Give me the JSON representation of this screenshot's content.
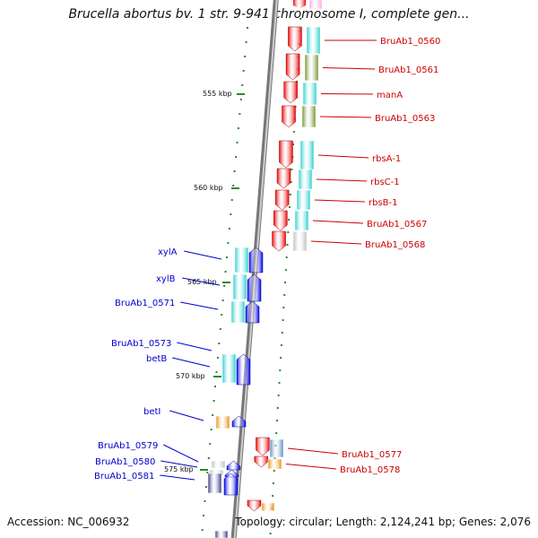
{
  "title": "Brucella abortus bv. 1 str. 9-941 chromosome I, complete gen...",
  "footer": {
    "accession": "Accession: NC_006932",
    "topology": "Topology: circular; Length: 2,124,241 bp; Genes: 2,076"
  },
  "colors": {
    "backbone": "#999999",
    "tick": "#2a8a2a",
    "forward_label": "#cc0000",
    "reverse_label": "#0000cc",
    "cyan": "#22cccc",
    "olive": "#6b8a20",
    "pink": "#ff9adf",
    "gray": "#bbbbbb",
    "orange": "#ee8800",
    "steel": "#4f86c0",
    "navy": "#2a2a80",
    "red": "#ee0000",
    "blue": "#0000ee"
  },
  "scale_labels": [
    "555 kbp",
    "560 kbp",
    "565 kbp",
    "570 kbp",
    "575 kbp"
  ],
  "forward_genes": [
    {
      "label": "BruAb1_0560",
      "color": "cyan"
    },
    {
      "label": "BruAb1_0561",
      "color": "olive"
    },
    {
      "label": "manA",
      "color": "cyan"
    },
    {
      "label": "BruAb1_0563",
      "color": "olive"
    },
    {
      "label": "rbsA-1",
      "color": "cyan"
    },
    {
      "label": "rbsC-1",
      "color": "cyan"
    },
    {
      "label": "rbsB-1",
      "color": "cyan"
    },
    {
      "label": "BruAb1_0567",
      "color": "cyan"
    },
    {
      "label": "BruAb1_0568",
      "color": "gray"
    },
    {
      "label": "BruAb1_0577",
      "color": "steel"
    },
    {
      "label": "BruAb1_0578",
      "color": "orange"
    }
  ],
  "reverse_genes": [
    {
      "label": "xylA",
      "color": "cyan"
    },
    {
      "label": "xylB",
      "color": "cyan"
    },
    {
      "label": "BruAb1_0571",
      "color": "cyan"
    },
    {
      "label": "BruAb1_0573",
      "color": "cyan"
    },
    {
      "label": "betB",
      "color": "cyan"
    },
    {
      "label": "betI",
      "color": "orange"
    },
    {
      "label": "BruAb1_0579",
      "color": "gray"
    },
    {
      "label": "BruAb1_0580",
      "color": "gray"
    },
    {
      "label": "BruAb1_0581",
      "color": "navy"
    }
  ]
}
